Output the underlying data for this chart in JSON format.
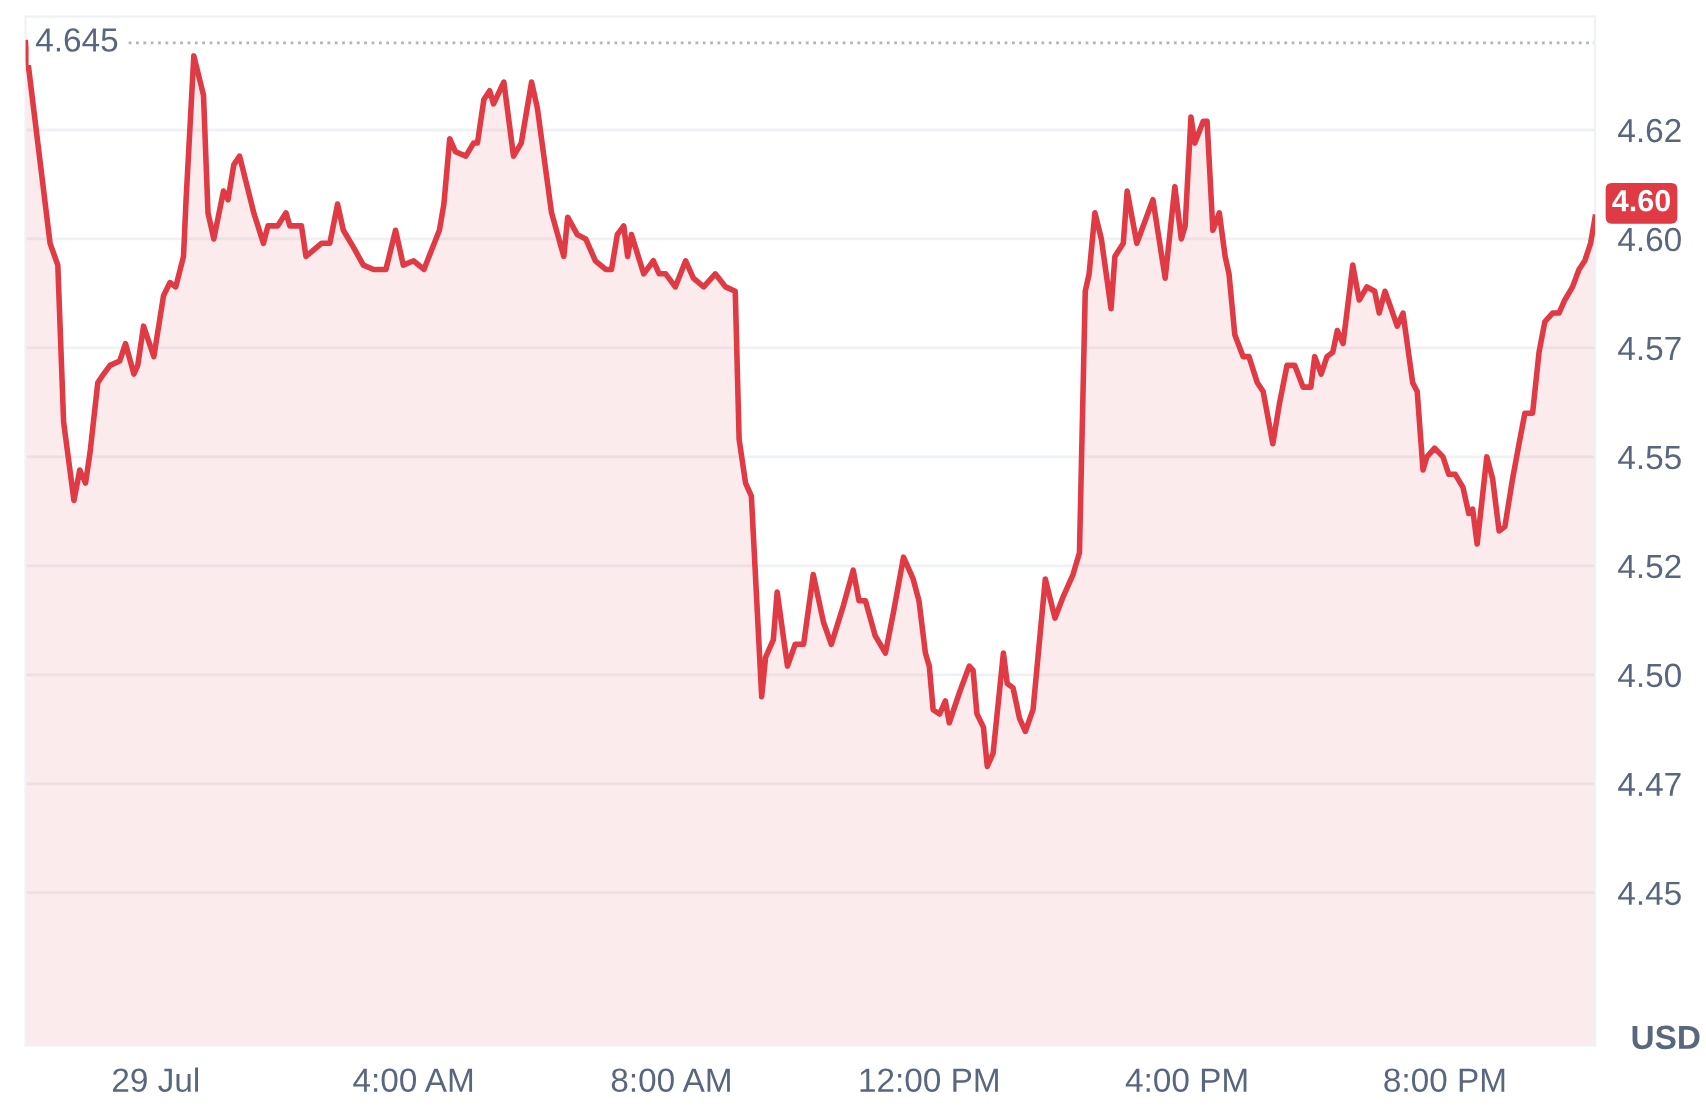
{
  "chart_data": {
    "type": "area",
    "ylabel": "USD",
    "x": [
      -2.02,
      -1.64,
      -1.52,
      -1.43,
      -1.27,
      -1.18,
      -1.09,
      -1.02,
      -0.9,
      -0.81,
      -0.71,
      -0.56,
      -0.47,
      -0.34,
      -0.28,
      -0.19,
      -0.03,
      0.12,
      0.22,
      0.31,
      0.43,
      0.47,
      0.59,
      0.74,
      0.81,
      0.9,
      1.05,
      1.12,
      1.21,
      1.3,
      1.52,
      1.67,
      1.74,
      1.89,
      2.02,
      2.08,
      2.26,
      2.33,
      2.57,
      2.7,
      2.82,
      2.91,
      3.07,
      3.22,
      3.38,
      3.57,
      3.72,
      3.84,
      4.0,
      4.16,
      4.4,
      4.47,
      4.56,
      4.65,
      4.81,
      4.93,
      4.99,
      5.09,
      5.18,
      5.24,
      5.4,
      5.55,
      5.67,
      5.83,
      5.92,
      6.14,
      6.33,
      6.39,
      6.54,
      6.67,
      6.82,
      6.98,
      7.07,
      7.16,
      7.26,
      7.32,
      7.38,
      7.57,
      7.72,
      7.81,
      7.91,
      8.06,
      8.22,
      8.34,
      8.5,
      8.68,
      8.84,
      8.99,
      9.05,
      9.15,
      9.24,
      9.4,
      9.46,
      9.58,
      9.64,
      9.8,
      9.92,
      10.05,
      10.2,
      10.36,
      10.48,
      10.67,
      10.82,
      10.91,
      11.01,
      11.16,
      11.32,
      11.44,
      11.6,
      11.75,
      11.84,
      11.94,
      12.0,
      12.06,
      12.16,
      12.25,
      12.31,
      12.47,
      12.62,
      12.68,
      12.74,
      12.84,
      12.9,
      12.99,
      13.15,
      13.21,
      13.3,
      13.4,
      13.49,
      13.61,
      13.8,
      13.95,
      14.08,
      14.23,
      14.33,
      14.42,
      14.48,
      14.57,
      14.67,
      14.82,
      14.88,
      15.01,
      15.07,
      15.22,
      15.47,
      15.66,
      15.81,
      15.91,
      15.97,
      16.06,
      16.12,
      16.25,
      16.31,
      16.4,
      16.5,
      16.59,
      16.65,
      16.74,
      16.87,
      16.96,
      17.09,
      17.18,
      17.33,
      17.43,
      17.55,
      17.67,
      17.8,
      17.92,
      17.98,
      18.08,
      18.17,
      18.26,
      18.33,
      18.42,
      18.57,
      18.67,
      18.79,
      18.91,
      18.98,
      19.07,
      19.19,
      19.26,
      19.35,
      19.5,
      19.57,
      19.66,
      19.72,
      19.84,
      19.97,
      20.06,
      20.16,
      20.28,
      20.37,
      20.43,
      20.5,
      20.65,
      20.74,
      20.84,
      20.93,
      21.05,
      21.15,
      21.24,
      21.36,
      21.46,
      21.55,
      21.67,
      21.77,
      21.86,
      21.98,
      22.08,
      22.17,
      22.26,
      22.33
    ],
    "series": [
      {
        "color": "#e03a45",
        "values": [
          4.645,
          4.599,
          4.594,
          4.558,
          4.54,
          4.547,
          4.544,
          4.551,
          4.567,
          4.569,
          4.571,
          4.572,
          4.576,
          4.569,
          4.571,
          4.58,
          4.573,
          4.587,
          4.59,
          4.589,
          4.596,
          4.609,
          4.642,
          4.633,
          4.606,
          4.6,
          4.611,
          4.609,
          4.617,
          4.619,
          4.606,
          4.599,
          4.603,
          4.603,
          4.606,
          4.603,
          4.603,
          4.596,
          4.599,
          4.599,
          4.608,
          4.602,
          4.598,
          4.594,
          4.593,
          4.593,
          4.602,
          4.594,
          4.595,
          4.593,
          4.602,
          4.608,
          4.623,
          4.62,
          4.619,
          4.622,
          4.622,
          4.632,
          4.634,
          4.631,
          4.636,
          4.619,
          4.622,
          4.636,
          4.63,
          4.606,
          4.596,
          4.605,
          4.601,
          4.6,
          4.595,
          4.593,
          4.593,
          4.601,
          4.603,
          4.596,
          4.601,
          4.592,
          4.595,
          4.592,
          4.592,
          4.589,
          4.595,
          4.591,
          4.589,
          4.592,
          4.589,
          4.588,
          4.554,
          4.544,
          4.541,
          4.495,
          4.504,
          4.508,
          4.519,
          4.502,
          4.507,
          4.507,
          4.523,
          4.512,
          4.507,
          4.516,
          4.524,
          4.517,
          4.517,
          4.509,
          4.505,
          4.514,
          4.527,
          4.522,
          4.517,
          4.505,
          4.502,
          4.492,
          4.491,
          4.494,
          4.489,
          4.496,
          4.502,
          4.501,
          4.491,
          4.488,
          4.479,
          4.482,
          4.505,
          4.498,
          4.497,
          4.49,
          4.487,
          4.492,
          4.522,
          4.513,
          4.518,
          4.523,
          4.528,
          4.588,
          4.592,
          4.606,
          4.6,
          4.584,
          4.596,
          4.599,
          4.611,
          4.599,
          4.609,
          4.591,
          4.612,
          4.6,
          4.603,
          4.628,
          4.622,
          4.627,
          4.627,
          4.602,
          4.606,
          4.596,
          4.592,
          4.578,
          4.573,
          4.573,
          4.567,
          4.565,
          4.553,
          4.562,
          4.571,
          4.571,
          4.566,
          4.566,
          4.573,
          4.569,
          4.573,
          4.574,
          4.579,
          4.576,
          4.594,
          4.586,
          4.589,
          4.588,
          4.583,
          4.588,
          4.583,
          4.58,
          4.583,
          4.567,
          4.565,
          4.547,
          4.55,
          4.552,
          4.55,
          4.546,
          4.546,
          4.543,
          4.537,
          4.538,
          4.53,
          4.55,
          4.545,
          4.533,
          4.534,
          4.545,
          4.553,
          4.56,
          4.56,
          4.574,
          4.581,
          4.583,
          4.583,
          4.586,
          4.589,
          4.593,
          4.595,
          4.599,
          4.605
        ]
      }
    ],
    "xlim": [
      -2.02,
      22.33
    ],
    "xticks": [
      {
        "value": 0,
        "label": "29 Jul"
      },
      {
        "value": 4,
        "label": "4:00 AM"
      },
      {
        "value": 8,
        "label": "8:00 AM"
      },
      {
        "value": 12,
        "label": "12:00 PM"
      },
      {
        "value": 16,
        "label": "4:00 PM"
      },
      {
        "value": 20,
        "label": "8:00 PM"
      }
    ],
    "ylim": [
      4.415,
      4.651
    ],
    "yticks": [
      4.45,
      {
        "value": 4.475,
        "label": "4.47"
      },
      {
        "value": 4.5,
        "label": "4.50"
      },
      {
        "value": 4.525,
        "label": "4.52"
      },
      4.55,
      {
        "value": 4.575,
        "label": "4.57"
      },
      {
        "value": 4.6,
        "label": "4.60"
      },
      {
        "value": 4.625,
        "label": "4.62"
      }
    ],
    "grid": "y",
    "ref_lines": [
      {
        "axis": "y",
        "value": 4.645,
        "label": "4.645",
        "color": "#b0b4bc",
        "line_style": "dotted"
      }
    ],
    "annotations": [
      {
        "text": "4.60",
        "x": 22.33,
        "y": 4.605
      }
    ]
  }
}
